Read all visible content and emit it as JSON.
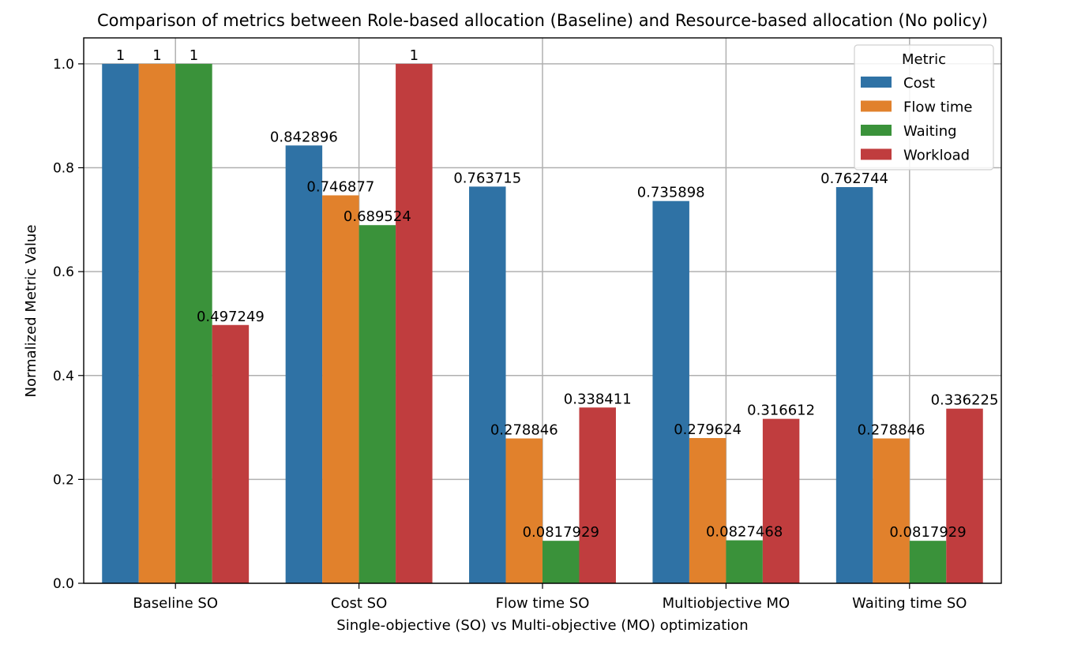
{
  "chart_data": {
    "type": "bar",
    "title": "Comparison of metrics between Role-based allocation (Baseline) and Resource-based allocation (No policy)",
    "xlabel": "Single-objective (SO) vs Multi-objective (MO) optimization",
    "ylabel": "Normalized Metric Value",
    "ylim": [
      0,
      1.05
    ],
    "yticks": [
      "0.0",
      "0.2",
      "0.4",
      "0.6",
      "0.8",
      "1.0"
    ],
    "categories": [
      "Baseline SO",
      "Cost SO",
      "Flow time SO",
      "Multiobjective MO",
      "Waiting time SO"
    ],
    "grid": true,
    "legend": {
      "title": "Metric",
      "placement": "top-right"
    },
    "series": [
      {
        "name": "Cost",
        "color": "#2f72a5",
        "values": [
          1,
          0.842896,
          0.763715,
          0.735898,
          0.762744
        ],
        "labels": [
          "1",
          "0.842896",
          "0.763715",
          "0.735898",
          "0.762744"
        ]
      },
      {
        "name": "Flow time",
        "color": "#e1812c",
        "values": [
          1,
          0.746877,
          0.278846,
          0.279624,
          0.278846
        ],
        "labels": [
          "1",
          "0.746877",
          "0.278846",
          "0.279624",
          "0.278846"
        ]
      },
      {
        "name": "Waiting",
        "color": "#3a923a",
        "values": [
          1,
          0.689524,
          0.0817929,
          0.0827468,
          0.0817929
        ],
        "labels": [
          "1",
          "0.689524",
          "0.0817929",
          "0.0827468",
          "0.0817929"
        ]
      },
      {
        "name": "Workload",
        "color": "#c03d3e",
        "values": [
          0.497249,
          1,
          0.338411,
          0.316612,
          0.336225
        ],
        "labels": [
          "0.497249",
          "1",
          "0.338411",
          "0.316612",
          "0.336225"
        ]
      }
    ]
  }
}
